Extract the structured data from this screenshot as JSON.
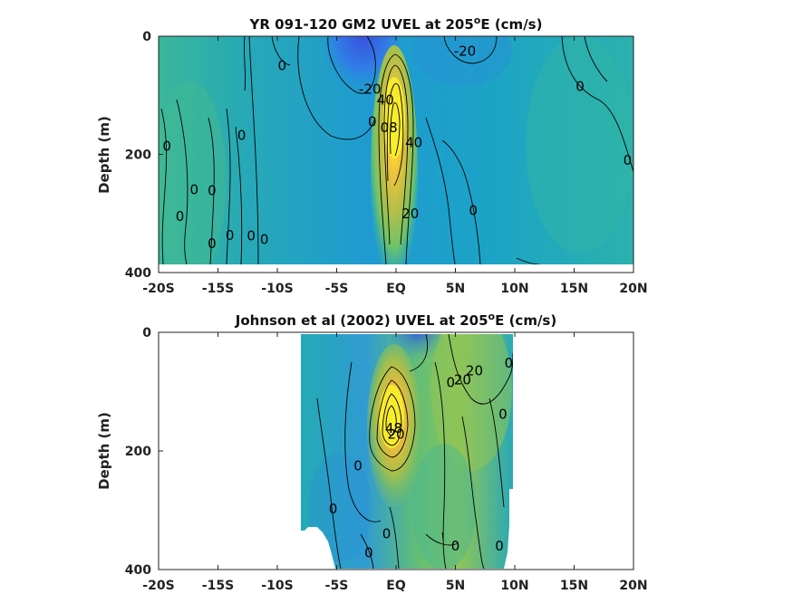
{
  "chart_data": [
    {
      "type": "heatmap",
      "title_prefix": "YR 091-120 GM2 UVEL at 205",
      "title_sup": "o",
      "title_suffix": "E (cm/s)",
      "ylabel": "Depth (m)",
      "xlim": [
        -20,
        20
      ],
      "ylim": [
        0,
        400
      ],
      "y_reversed": true,
      "x_ticks": [
        -20,
        -15,
        -10,
        -5,
        0,
        5,
        10,
        15,
        20
      ],
      "x_tick_labels": [
        "-20S",
        "-15S",
        "-10S",
        "-5S",
        "EQ",
        "5N",
        "10N",
        "15N",
        "20N"
      ],
      "y_ticks": [
        0,
        200,
        400
      ],
      "y_tick_labels": [
        "0",
        "200",
        "400"
      ],
      "data_extent": {
        "x": [
          -20,
          20
        ],
        "depth": [
          0,
          385
        ]
      },
      "colormap": "parula",
      "contour_labels": [
        {
          "text": "0",
          "x": -9.6,
          "depth": 50
        },
        {
          "text": "-20",
          "x": -2.2,
          "depth": 90
        },
        {
          "text": "40",
          "x": -0.9,
          "depth": 108
        },
        {
          "text": "0",
          "x": -2.0,
          "depth": 145
        },
        {
          "text": "08",
          "x": -0.6,
          "depth": 155
        },
        {
          "text": "40",
          "x": 1.5,
          "depth": 180
        },
        {
          "text": "-20",
          "x": 5.8,
          "depth": 25
        },
        {
          "text": "0",
          "x": 15.5,
          "depth": 85
        },
        {
          "text": "0",
          "x": -19.3,
          "depth": 186
        },
        {
          "text": "0",
          "x": -13.0,
          "depth": 168
        },
        {
          "text": "0",
          "x": -17.0,
          "depth": 260
        },
        {
          "text": "0",
          "x": -18.2,
          "depth": 305
        },
        {
          "text": "0",
          "x": -15.5,
          "depth": 261
        },
        {
          "text": "0",
          "x": -14.0,
          "depth": 337
        },
        {
          "text": "0",
          "x": -15.5,
          "depth": 351
        },
        {
          "text": "0",
          "x": -12.2,
          "depth": 338
        },
        {
          "text": "0",
          "x": -11.1,
          "depth": 344
        },
        {
          "text": "20",
          "x": 1.2,
          "depth": 300
        },
        {
          "text": "0",
          "x": 6.5,
          "depth": 295
        },
        {
          "text": "0",
          "x": 19.5,
          "depth": 210
        }
      ]
    },
    {
      "type": "heatmap",
      "title_prefix": "Johnson et al (2002) UVEL at 205",
      "title_sup": "o",
      "title_suffix": "E (cm/s)",
      "ylabel": "Depth (m)",
      "xlim": [
        -20,
        20
      ],
      "ylim": [
        0,
        400
      ],
      "y_reversed": true,
      "x_ticks": [
        -20,
        -15,
        -10,
        -5,
        0,
        5,
        10,
        15,
        20
      ],
      "x_tick_labels": [
        "-20S",
        "-15S",
        "-10S",
        "-5S",
        "EQ",
        "5N",
        "10N",
        "15N",
        "20N"
      ],
      "y_ticks": [
        0,
        200,
        400
      ],
      "y_tick_labels": [
        "0",
        "200",
        "400"
      ],
      "data_extent": {
        "x": [
          -8,
          10
        ],
        "depth": [
          0,
          400
        ]
      },
      "colormap": "parula",
      "contour_labels": [
        {
          "text": "20",
          "x": 5.6,
          "depth": 80
        },
        {
          "text": "20",
          "x": 6.6,
          "depth": 65
        },
        {
          "text": "0",
          "x": 9.5,
          "depth": 52
        },
        {
          "text": "0",
          "x": 4.6,
          "depth": 85
        },
        {
          "text": "0",
          "x": 9.0,
          "depth": 138
        },
        {
          "text": "48",
          "x": -0.2,
          "depth": 162
        },
        {
          "text": "20",
          "x": 0.0,
          "depth": 172
        },
        {
          "text": "0",
          "x": -3.2,
          "depth": 225
        },
        {
          "text": "0",
          "x": -5.3,
          "depth": 298
        },
        {
          "text": "0",
          "x": -0.8,
          "depth": 340
        },
        {
          "text": "0",
          "x": -2.3,
          "depth": 372
        },
        {
          "text": "0",
          "x": 5.0,
          "depth": 360
        },
        {
          "text": "0",
          "x": 8.7,
          "depth": 360
        }
      ]
    }
  ]
}
